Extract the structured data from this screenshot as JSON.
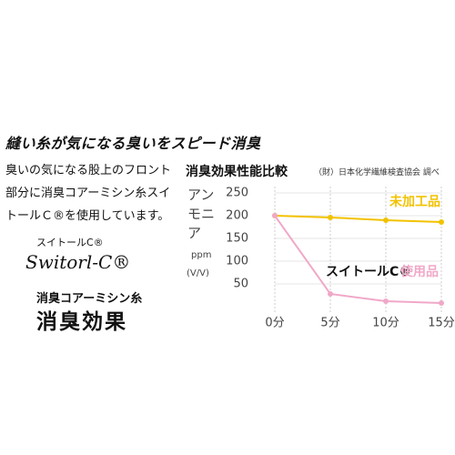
{
  "heading": "縫い糸が気になる臭いをスピード消臭",
  "description": [
    "臭いの気になる股上のフロント",
    "部分に消臭コアーミシン糸スイ",
    "トールＣ®を使用しています。"
  ],
  "logo": {
    "kana": "スイトールC®",
    "script": "Switorl-C®"
  },
  "product": {
    "line": "消臭コアーミシン糸",
    "effect": "消臭効果"
  },
  "chart_data": {
    "type": "line",
    "title": "消臭効果性能比較",
    "source": "（財）日本化学繊維検査協会 調べ",
    "y_label": "アンモニア",
    "y_unit": "ppm",
    "y_unit_note": "(V/V)",
    "categories": [
      "0分",
      "5分",
      "10分",
      "15分"
    ],
    "series": [
      {
        "name": "未加工品",
        "color": "#f2c200",
        "values": [
          200,
          196,
          190,
          186
        ]
      },
      {
        "name": "使用品",
        "color": "#f0a8c8",
        "values": [
          200,
          28,
          12,
          8
        ]
      }
    ],
    "annotation": "スイトールC®",
    "ylim": [
      0,
      250
    ],
    "yticks": [
      50,
      100,
      150,
      200,
      250
    ],
    "grid": true
  }
}
